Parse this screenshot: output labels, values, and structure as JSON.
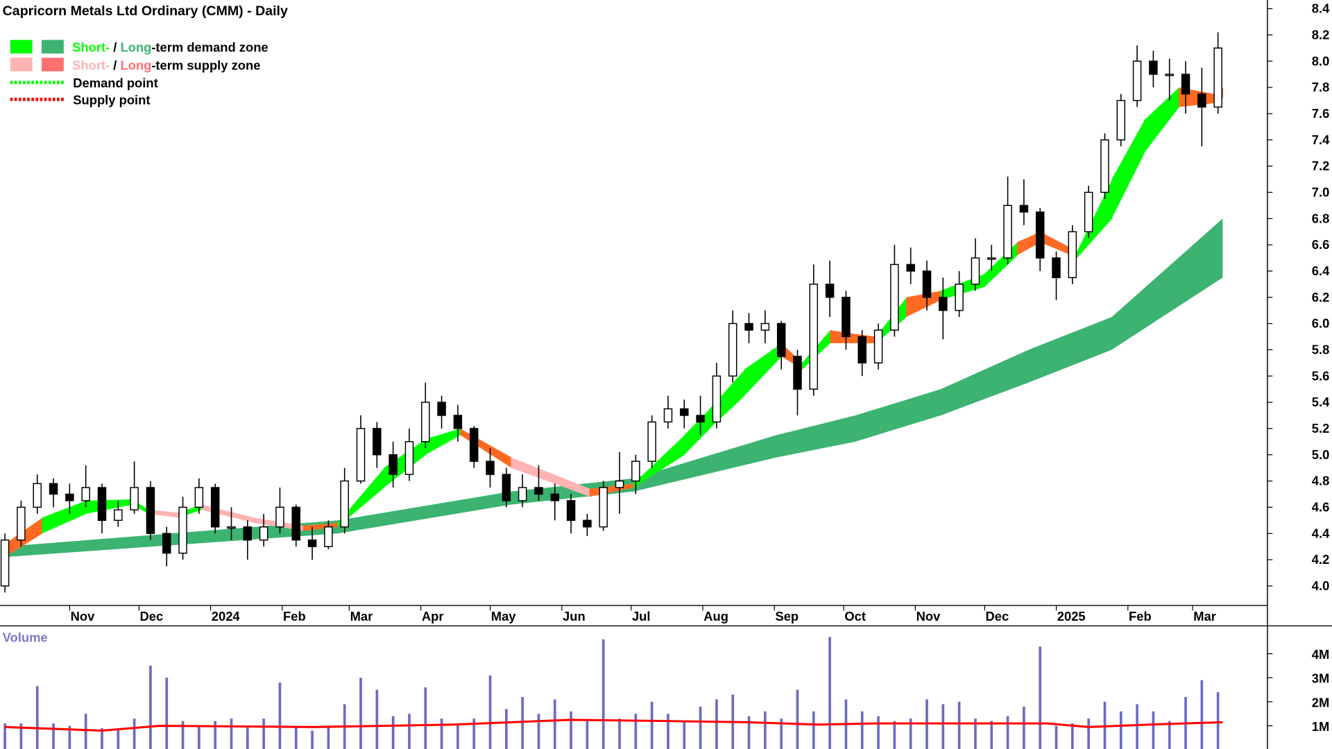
{
  "chart_data": {
    "type": "candlestick",
    "title": "Capricorn Metals Ltd Ordinary (CMM) - Daily",
    "legend": {
      "placement": "top-left",
      "items": [
        {
          "short": "Short-",
          "sep": " / ",
          "long": "Long",
          "rest": "-term demand zone",
          "short_color": "#00ff00",
          "long_color": "#3cb371"
        },
        {
          "short": "Short-",
          "sep": " / ",
          "long": "Long",
          "rest": "-term supply zone",
          "short_color": "#ffb3b3",
          "long_color": "#ff7070"
        },
        {
          "label": "Demand point",
          "color": "#00ff00"
        },
        {
          "label": "Supply point",
          "color": "#ff0000"
        }
      ]
    },
    "colors": {
      "demand_short": "#00ff00",
      "demand_long": "#3cb371",
      "supply_short": "#ffb3b3",
      "supply_overlap": "#ff6a22",
      "volume": "#6b6bc4",
      "volume_ma": "#ff0000"
    },
    "ylim": [
      4.0,
      8.4
    ],
    "y_ticks": [
      4.0,
      4.2,
      4.4,
      4.6,
      4.8,
      5.0,
      5.2,
      5.4,
      5.6,
      5.8,
      6.0,
      6.2,
      6.4,
      6.6,
      6.8,
      7.0,
      7.2,
      7.4,
      7.6,
      7.8,
      8.0,
      8.2,
      8.4
    ],
    "x_ticks": [
      {
        "date": "2023-11-01",
        "label": "Nov"
      },
      {
        "date": "2023-12-01",
        "label": "Dec"
      },
      {
        "date": "2024-01-01",
        "label": "2024"
      },
      {
        "date": "2024-02-01",
        "label": "Feb"
      },
      {
        "date": "2024-03-01",
        "label": "Mar"
      },
      {
        "date": "2024-04-01",
        "label": "Apr"
      },
      {
        "date": "2024-05-01",
        "label": "May"
      },
      {
        "date": "2024-06-01",
        "label": "Jun"
      },
      {
        "date": "2024-07-01",
        "label": "Jul"
      },
      {
        "date": "2024-08-01",
        "label": "Aug"
      },
      {
        "date": "2024-09-01",
        "label": "Sep"
      },
      {
        "date": "2024-10-01",
        "label": "Oct"
      },
      {
        "date": "2024-11-01",
        "label": "Nov"
      },
      {
        "date": "2024-12-01",
        "label": "Dec"
      },
      {
        "date": "2025-01-01",
        "label": "2025"
      },
      {
        "date": "2025-02-01",
        "label": "Feb"
      },
      {
        "date": "2025-03-01",
        "label": "Mar"
      }
    ],
    "ohlc_columns": [
      "week_of",
      "open",
      "high",
      "low",
      "close"
    ],
    "ohlc": [
      [
        "2023-10-02",
        4.0,
        4.4,
        3.95,
        4.35
      ],
      [
        "2023-10-09",
        4.35,
        4.65,
        4.3,
        4.6
      ],
      [
        "2023-10-16",
        4.6,
        4.85,
        4.55,
        4.78
      ],
      [
        "2023-10-23",
        4.78,
        4.82,
        4.6,
        4.7
      ],
      [
        "2023-10-30",
        4.7,
        4.78,
        4.55,
        4.65
      ],
      [
        "2023-11-06",
        4.65,
        4.92,
        4.6,
        4.75
      ],
      [
        "2023-11-13",
        4.75,
        4.78,
        4.4,
        4.5
      ],
      [
        "2023-11-20",
        4.5,
        4.65,
        4.45,
        4.58
      ],
      [
        "2023-11-27",
        4.58,
        4.95,
        4.55,
        4.75
      ],
      [
        "2023-12-04",
        4.75,
        4.8,
        4.35,
        4.4
      ],
      [
        "2023-12-11",
        4.4,
        4.45,
        4.15,
        4.25
      ],
      [
        "2023-12-18",
        4.25,
        4.68,
        4.2,
        4.6
      ],
      [
        "2023-12-25",
        4.6,
        4.82,
        4.55,
        4.75
      ],
      [
        "2024-01-01",
        4.75,
        4.78,
        4.4,
        4.45
      ],
      [
        "2024-01-08",
        4.45,
        4.6,
        4.35,
        4.45
      ],
      [
        "2024-01-15",
        4.45,
        4.5,
        4.2,
        4.35
      ],
      [
        "2024-01-22",
        4.35,
        4.55,
        4.3,
        4.45
      ],
      [
        "2024-01-29",
        4.45,
        4.75,
        4.4,
        4.6
      ],
      [
        "2024-02-05",
        4.6,
        4.62,
        4.3,
        4.35
      ],
      [
        "2024-02-12",
        4.35,
        4.45,
        4.2,
        4.3
      ],
      [
        "2024-02-19",
        4.3,
        4.5,
        4.28,
        4.45
      ],
      [
        "2024-02-26",
        4.45,
        4.9,
        4.4,
        4.8
      ],
      [
        "2024-03-04",
        4.8,
        5.3,
        4.78,
        5.2
      ],
      [
        "2024-03-11",
        5.2,
        5.25,
        4.9,
        5.0
      ],
      [
        "2024-03-18",
        5.0,
        5.1,
        4.75,
        4.85
      ],
      [
        "2024-03-25",
        4.85,
        5.2,
        4.8,
        5.1
      ],
      [
        "2024-04-01",
        5.1,
        5.55,
        5.05,
        5.4
      ],
      [
        "2024-04-08",
        5.4,
        5.45,
        5.2,
        5.3
      ],
      [
        "2024-04-15",
        5.3,
        5.38,
        5.1,
        5.2
      ],
      [
        "2024-04-22",
        5.2,
        5.22,
        4.9,
        4.95
      ],
      [
        "2024-04-29",
        4.95,
        5.05,
        4.75,
        4.85
      ],
      [
        "2024-05-06",
        4.85,
        4.9,
        4.6,
        4.65
      ],
      [
        "2024-05-13",
        4.65,
        4.85,
        4.6,
        4.75
      ],
      [
        "2024-05-20",
        4.75,
        4.92,
        4.65,
        4.7
      ],
      [
        "2024-05-27",
        4.7,
        4.78,
        4.5,
        4.65
      ],
      [
        "2024-06-03",
        4.65,
        4.7,
        4.4,
        4.5
      ],
      [
        "2024-06-10",
        4.5,
        4.55,
        4.38,
        4.45
      ],
      [
        "2024-06-17",
        4.45,
        4.8,
        4.42,
        4.75
      ],
      [
        "2024-06-24",
        4.75,
        5.02,
        4.55,
        4.8
      ],
      [
        "2024-07-01",
        4.8,
        5.0,
        4.7,
        4.95
      ],
      [
        "2024-07-08",
        4.95,
        5.3,
        4.9,
        5.25
      ],
      [
        "2024-07-15",
        5.25,
        5.45,
        5.2,
        5.35
      ],
      [
        "2024-07-22",
        5.35,
        5.42,
        5.2,
        5.3
      ],
      [
        "2024-07-29",
        5.3,
        5.45,
        5.15,
        5.25
      ],
      [
        "2024-08-05",
        5.25,
        5.7,
        5.2,
        5.6
      ],
      [
        "2024-08-12",
        5.6,
        6.1,
        5.55,
        6.0
      ],
      [
        "2024-08-19",
        6.0,
        6.08,
        5.85,
        5.95
      ],
      [
        "2024-08-26",
        5.95,
        6.1,
        5.85,
        6.0
      ],
      [
        "2024-09-02",
        6.0,
        6.02,
        5.65,
        5.75
      ],
      [
        "2024-09-09",
        5.75,
        5.8,
        5.3,
        5.5
      ],
      [
        "2024-09-16",
        5.5,
        6.45,
        5.45,
        6.3
      ],
      [
        "2024-09-23",
        6.3,
        6.48,
        6.05,
        6.2
      ],
      [
        "2024-09-30",
        6.2,
        6.25,
        5.8,
        5.9
      ],
      [
        "2024-10-07",
        5.9,
        5.95,
        5.6,
        5.7
      ],
      [
        "2024-10-14",
        5.7,
        6.0,
        5.65,
        5.95
      ],
      [
        "2024-10-21",
        5.95,
        6.6,
        5.9,
        6.45
      ],
      [
        "2024-10-28",
        6.45,
        6.58,
        6.3,
        6.4
      ],
      [
        "2024-11-04",
        6.4,
        6.48,
        6.1,
        6.2
      ],
      [
        "2024-11-11",
        6.2,
        6.35,
        5.88,
        6.1
      ],
      [
        "2024-11-18",
        6.1,
        6.4,
        6.05,
        6.3
      ],
      [
        "2024-11-25",
        6.3,
        6.65,
        6.25,
        6.5
      ],
      [
        "2024-12-02",
        6.5,
        6.6,
        6.4,
        6.5
      ],
      [
        "2024-12-09",
        6.5,
        7.12,
        6.45,
        6.9
      ],
      [
        "2024-12-16",
        6.9,
        7.1,
        6.75,
        6.85
      ],
      [
        "2024-12-23",
        6.85,
        6.88,
        6.4,
        6.5
      ],
      [
        "2024-12-30",
        6.5,
        6.55,
        6.18,
        6.35
      ],
      [
        "2025-01-06",
        6.35,
        6.75,
        6.3,
        6.7
      ],
      [
        "2025-01-13",
        6.7,
        7.05,
        6.65,
        7.0
      ],
      [
        "2025-01-20",
        7.0,
        7.45,
        6.95,
        7.4
      ],
      [
        "2025-01-27",
        7.4,
        7.75,
        7.35,
        7.7
      ],
      [
        "2025-02-03",
        7.7,
        8.12,
        7.65,
        8.0
      ],
      [
        "2025-02-10",
        8.0,
        8.08,
        7.8,
        7.9
      ],
      [
        "2025-02-17",
        7.9,
        8.02,
        7.7,
        7.9
      ],
      [
        "2025-02-24",
        7.9,
        8.0,
        7.6,
        7.75
      ],
      [
        "2025-03-03",
        7.75,
        7.95,
        7.35,
        7.65
      ],
      [
        "2025-03-10",
        7.65,
        8.22,
        7.6,
        8.1
      ]
    ],
    "long_term_zone": [
      {
        "date": "2023-10-04",
        "lower": 4.22,
        "upper": 4.3
      },
      {
        "date": "2024-02-25",
        "lower": 4.4,
        "upper": 4.5
      },
      {
        "date": "2024-05-10",
        "lower": 4.62,
        "upper": 4.72
      },
      {
        "date": "2024-07-02",
        "lower": 4.72,
        "upper": 4.82
      },
      {
        "date": "2024-09-02",
        "lower": 4.98,
        "upper": 5.15
      },
      {
        "date": "2024-10-06",
        "lower": 5.1,
        "upper": 5.3
      },
      {
        "date": "2024-11-12",
        "lower": 5.3,
        "upper": 5.5
      },
      {
        "date": "2024-12-20",
        "lower": 5.55,
        "upper": 5.8
      },
      {
        "date": "2025-01-25",
        "lower": 5.8,
        "upper": 6.05
      },
      {
        "date": "2025-03-14",
        "lower": 6.35,
        "upper": 6.8
      }
    ],
    "short_term_zone": [
      {
        "date": "2023-10-04",
        "lower": 4.22,
        "upper": 4.32,
        "state": "supply"
      },
      {
        "date": "2023-10-20",
        "lower": 4.4,
        "upper": 4.52,
        "state": "demand"
      },
      {
        "date": "2023-11-08",
        "lower": 4.55,
        "upper": 4.65,
        "state": "demand"
      },
      {
        "date": "2023-11-28",
        "lower": 4.62,
        "upper": 4.66,
        "state": "demand"
      },
      {
        "date": "2023-12-05",
        "lower": 4.55,
        "upper": 4.58,
        "state": "weak-supply"
      },
      {
        "date": "2023-12-18",
        "lower": 4.52,
        "upper": 4.56,
        "state": "demand"
      },
      {
        "date": "2023-12-28",
        "lower": 4.58,
        "upper": 4.62,
        "state": "weak-supply"
      },
      {
        "date": "2024-01-20",
        "lower": 4.48,
        "upper": 4.52,
        "state": "weak-supply"
      },
      {
        "date": "2024-02-10",
        "lower": 4.42,
        "upper": 4.46,
        "state": "supply"
      },
      {
        "date": "2024-02-25",
        "lower": 4.45,
        "upper": 4.48,
        "state": "demand"
      },
      {
        "date": "2024-03-16",
        "lower": 4.75,
        "upper": 4.9,
        "state": "demand"
      },
      {
        "date": "2024-04-03",
        "lower": 5.0,
        "upper": 5.12,
        "state": "demand"
      },
      {
        "date": "2024-04-18",
        "lower": 5.15,
        "upper": 5.2,
        "state": "supply"
      },
      {
        "date": "2024-05-10",
        "lower": 4.9,
        "upper": 4.98,
        "state": "weak-supply"
      },
      {
        "date": "2024-06-13",
        "lower": 4.68,
        "upper": 4.74,
        "state": "supply"
      },
      {
        "date": "2024-07-02",
        "lower": 4.75,
        "upper": 4.78,
        "state": "demand"
      },
      {
        "date": "2024-07-24",
        "lower": 5.0,
        "upper": 5.15,
        "state": "demand"
      },
      {
        "date": "2024-08-04",
        "lower": 5.2,
        "upper": 5.35,
        "state": "demand"
      },
      {
        "date": "2024-08-19",
        "lower": 5.45,
        "upper": 5.65,
        "state": "demand"
      },
      {
        "date": "2024-09-04",
        "lower": 5.75,
        "upper": 5.85,
        "state": "supply"
      },
      {
        "date": "2024-09-13",
        "lower": 5.65,
        "upper": 5.7,
        "state": "demand"
      },
      {
        "date": "2024-09-25",
        "lower": 5.85,
        "upper": 5.95,
        "state": "supply"
      },
      {
        "date": "2024-10-06",
        "lower": 5.85,
        "upper": 5.92,
        "state": "supply"
      },
      {
        "date": "2024-10-15",
        "lower": 5.85,
        "upper": 5.9,
        "state": "demand"
      },
      {
        "date": "2024-10-28",
        "lower": 6.05,
        "upper": 6.2,
        "state": "supply"
      },
      {
        "date": "2024-11-12",
        "lower": 6.18,
        "upper": 6.25,
        "state": "demand"
      },
      {
        "date": "2024-12-01",
        "lower": 6.28,
        "upper": 6.38,
        "state": "demand"
      },
      {
        "date": "2024-12-15",
        "lower": 6.52,
        "upper": 6.62,
        "state": "supply"
      },
      {
        "date": "2024-12-25",
        "lower": 6.62,
        "upper": 6.7,
        "state": "supply"
      },
      {
        "date": "2025-01-10",
        "lower": 6.5,
        "upper": 6.55,
        "state": "demand"
      },
      {
        "date": "2025-01-25",
        "lower": 6.8,
        "upper": 7.1,
        "state": "demand"
      },
      {
        "date": "2025-02-08",
        "lower": 7.3,
        "upper": 7.55,
        "state": "demand"
      },
      {
        "date": "2025-02-23",
        "lower": 7.65,
        "upper": 7.8,
        "state": "supply"
      },
      {
        "date": "2025-03-10",
        "lower": 7.68,
        "upper": 7.75,
        "state": "supply"
      },
      {
        "date": "2025-03-14",
        "lower": 7.72,
        "upper": 7.8,
        "state": "supply"
      }
    ],
    "volume_panel": {
      "label": "Volume",
      "ticks": [
        {
          "value": 1,
          "label": "1M"
        },
        {
          "value": 2,
          "label": "2M"
        },
        {
          "value": 3,
          "label": "3M"
        },
        {
          "value": 4,
          "label": "4M"
        }
      ],
      "unit": "M",
      "weekly_peak_volume": [
        1.1,
        1.1,
        2.65,
        1.1,
        1.0,
        1.5,
        0.9,
        0.9,
        1.3,
        3.5,
        3.0,
        1.2,
        1.0,
        1.2,
        1.3,
        1.0,
        1.3,
        2.8,
        1.0,
        0.8,
        1.0,
        1.9,
        3.0,
        2.5,
        1.4,
        1.5,
        2.6,
        1.3,
        1.1,
        1.3,
        3.1,
        1.7,
        2.2,
        1.5,
        2.1,
        1.6,
        1.2,
        4.6,
        1.3,
        1.5,
        2.0,
        1.5,
        1.2,
        1.8,
        2.1,
        2.3,
        1.4,
        1.6,
        1.3,
        2.5,
        1.6,
        4.7,
        2.1,
        1.6,
        1.4,
        1.2,
        1.3,
        2.1,
        1.9,
        2.0,
        1.3,
        1.2,
        1.4,
        1.8,
        4.3,
        1.0,
        1.1,
        1.3,
        2.0,
        1.6,
        1.9,
        1.6,
        1.2,
        2.2,
        2.9,
        2.4
      ],
      "moving_average": [
        {
          "date": "2023-10-04",
          "value": 0.95
        },
        {
          "date": "2023-11-15",
          "value": 0.8
        },
        {
          "date": "2023-12-10",
          "value": 1.0
        },
        {
          "date": "2024-02-15",
          "value": 0.95
        },
        {
          "date": "2024-04-15",
          "value": 1.05
        },
        {
          "date": "2024-06-05",
          "value": 1.25
        },
        {
          "date": "2024-07-15",
          "value": 1.2
        },
        {
          "date": "2024-08-20",
          "value": 1.15
        },
        {
          "date": "2024-09-20",
          "value": 1.05
        },
        {
          "date": "2024-10-15",
          "value": 1.1
        },
        {
          "date": "2024-12-28",
          "value": 1.1
        },
        {
          "date": "2025-01-15",
          "value": 0.95
        },
        {
          "date": "2025-02-10",
          "value": 1.05
        },
        {
          "date": "2025-03-14",
          "value": 1.15
        }
      ]
    }
  }
}
